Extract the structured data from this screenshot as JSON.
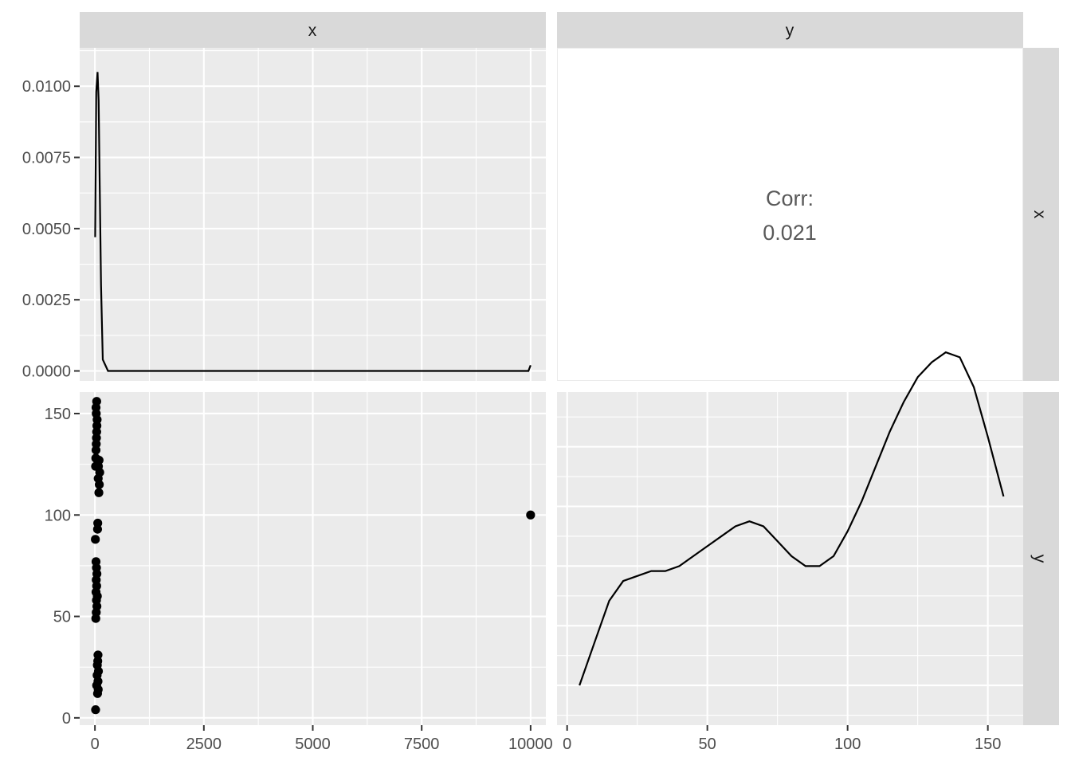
{
  "chart_data": {
    "type": "pairs",
    "variables": [
      "x",
      "y"
    ],
    "panels": {
      "x_density": {
        "type": "line",
        "variable": "x",
        "xlim": [
          -350,
          10350
        ],
        "ylim": [
          -0.00035,
          0.01135
        ],
        "xticks": [
          0,
          2500,
          5000,
          7500,
          10000
        ],
        "xtick_labels": [
          "0",
          "2500",
          "5000",
          "7500",
          "10000"
        ],
        "yticks": [
          0,
          0.0025,
          0.005,
          0.0075,
          0.01
        ],
        "ytick_labels": [
          "0.0000",
          "0.0025",
          "0.0050",
          "0.0075",
          "0.0100"
        ],
        "x": [
          5,
          30,
          60,
          85,
          110,
          140,
          180,
          300,
          1000,
          5000,
          9000,
          9950,
          10000
        ],
        "y": [
          0.0047,
          0.0098,
          0.0105,
          0.0095,
          0.0065,
          0.003,
          0.0004,
          0.0,
          0.0,
          0.0,
          0.0,
          0.0,
          0.0002
        ]
      },
      "correlation": {
        "type": "text",
        "label": "Corr:",
        "value": "0.021"
      },
      "scatter_xy": {
        "type": "scatter",
        "xlim": [
          -350,
          10350
        ],
        "ylim": [
          -3.6,
          160.6
        ],
        "yticks": [
          0,
          50,
          100,
          150
        ],
        "ytick_labels": [
          "0",
          "50",
          "100",
          "150"
        ],
        "points": [
          [
            15,
            4
          ],
          [
            60,
            12
          ],
          [
            75,
            14
          ],
          [
            40,
            16
          ],
          [
            70,
            18
          ],
          [
            50,
            21
          ],
          [
            80,
            23
          ],
          [
            55,
            26
          ],
          [
            65,
            28
          ],
          [
            70,
            31
          ],
          [
            20,
            49
          ],
          [
            30,
            52
          ],
          [
            45,
            55
          ],
          [
            35,
            58
          ],
          [
            55,
            60
          ],
          [
            25,
            62
          ],
          [
            40,
            65
          ],
          [
            30,
            68
          ],
          [
            45,
            71
          ],
          [
            35,
            74
          ],
          [
            25,
            77
          ],
          [
            10,
            88
          ],
          [
            60,
            93
          ],
          [
            65,
            96
          ],
          [
            10000,
            100
          ],
          [
            90,
            111
          ],
          [
            100,
            115
          ],
          [
            75,
            118
          ],
          [
            110,
            121
          ],
          [
            80,
            124
          ],
          [
            95,
            127
          ],
          [
            15,
            124
          ],
          [
            20,
            128
          ],
          [
            25,
            132
          ],
          [
            30,
            135
          ],
          [
            35,
            138
          ],
          [
            40,
            141
          ],
          [
            45,
            144
          ],
          [
            50,
            147
          ],
          [
            30,
            150
          ],
          [
            25,
            153
          ],
          [
            40,
            156
          ]
        ]
      },
      "y_density": {
        "type": "line",
        "variable": "y",
        "xlim": [
          -3.6,
          162.6
        ],
        "xticks": [
          0,
          50,
          100,
          150
        ],
        "xtick_labels": [
          "0",
          "50",
          "100",
          "150"
        ],
        "ylim": [
          0.0034,
          0.0101
        ],
        "x": [
          4.4,
          10,
          15,
          20,
          25,
          30,
          35,
          40,
          45,
          50,
          55,
          60,
          65,
          70,
          75,
          80,
          85,
          90,
          95,
          100,
          105,
          110,
          115,
          120,
          125,
          130,
          135,
          140,
          145,
          150,
          155.6
        ],
        "y": [
          0.0042,
          0.0051,
          0.0059,
          0.0063,
          0.0064,
          0.0065,
          0.0065,
          0.0066,
          0.0068,
          0.007,
          0.0072,
          0.0074,
          0.0075,
          0.0074,
          0.0071,
          0.0068,
          0.0066,
          0.0066,
          0.0068,
          0.0073,
          0.0079,
          0.0086,
          0.0093,
          0.0099,
          0.0104,
          0.0107,
          0.0109,
          0.0108,
          0.0102,
          0.0092,
          0.008
        ]
      }
    }
  }
}
